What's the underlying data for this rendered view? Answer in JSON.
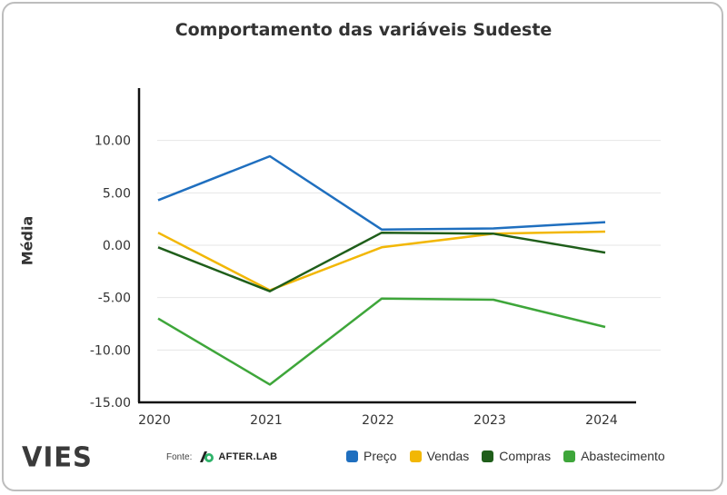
{
  "chart_data": {
    "type": "line",
    "title": "Comportamento das variáveis Sudeste",
    "xlabel": "",
    "ylabel": "Média",
    "categories": [
      "2020",
      "2021",
      "2022",
      "2023",
      "2024"
    ],
    "ylim": [
      -15,
      15
    ],
    "yticks": [
      -15,
      -10,
      -5,
      0,
      5,
      10
    ],
    "ytick_labels": [
      "-15.00",
      "-10.00",
      "-5.00",
      "0.00",
      "5.00",
      "10.00"
    ],
    "grid": true,
    "legend_position": "bottom",
    "series": [
      {
        "name": "Preço",
        "color": "#1f6fbf",
        "values": [
          4.3,
          8.5,
          1.5,
          1.6,
          2.2
        ]
      },
      {
        "name": "Vendas",
        "color": "#f2b705",
        "values": [
          1.2,
          -4.3,
          -0.2,
          1.1,
          1.3
        ]
      },
      {
        "name": "Compras",
        "color": "#1f5e1a",
        "values": [
          -0.2,
          -4.4,
          1.2,
          1.1,
          -0.7
        ]
      },
      {
        "name": "Abastecimento",
        "color": "#3ea63a",
        "values": [
          -7.0,
          -13.3,
          -5.1,
          -5.2,
          -7.8
        ]
      }
    ]
  },
  "footer": {
    "logo": "VIES",
    "source_label": "Fonte:",
    "source_brand": "AFTER.LAB"
  }
}
